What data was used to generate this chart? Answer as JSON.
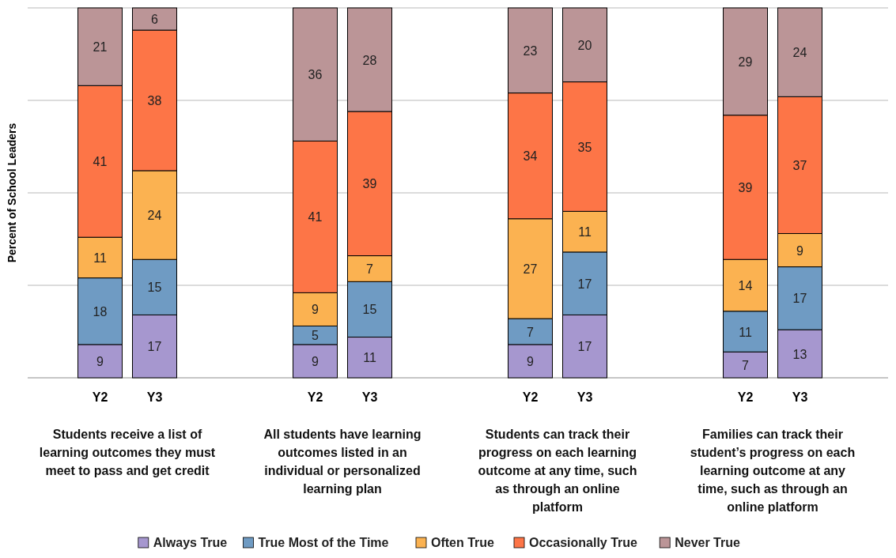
{
  "chart_data": {
    "type": "bar",
    "stacked": true,
    "ylabel": "Percent of School Leaders",
    "categories": [
      "Y2",
      "Y3",
      "Y2",
      "Y3",
      "Y2",
      "Y3",
      "Y2",
      "Y3"
    ],
    "series": [
      {
        "name": "Always True",
        "color": "#a697cf",
        "values": [
          9,
          17,
          9,
          11,
          9,
          17,
          7,
          13
        ]
      },
      {
        "name": "True Most of the Time",
        "color": "#6f9bc3",
        "values": [
          18,
          15,
          5,
          15,
          7,
          17,
          11,
          17
        ]
      },
      {
        "name": "Often True",
        "color": "#fbb251",
        "values": [
          11,
          24,
          9,
          7,
          27,
          11,
          14,
          9
        ]
      },
      {
        "name": "Occasionally True",
        "color": "#fd7547",
        "values": [
          41,
          38,
          41,
          39,
          34,
          35,
          39,
          37
        ]
      },
      {
        "name": "Never True",
        "color": "#bb9597",
        "values": [
          21,
          6,
          36,
          28,
          23,
          20,
          29,
          24
        ]
      }
    ],
    "ylim": [
      0,
      100
    ],
    "yticks": [
      {
        "value": 0,
        "label": null
      },
      {
        "value": 25,
        "label": null
      },
      {
        "value": 50,
        "label": null
      },
      {
        "value": 75,
        "label": null
      },
      {
        "value": 100,
        "label": null
      }
    ],
    "tick_labels": "x",
    "grid": "y",
    "data_labels": true,
    "legend": "bottom",
    "annotations": [
      "Students receive a list of learning outcomes they must meet to pass and get credit",
      "All students have learning outcomes listed in an individual or personalized learning plan",
      "Students can track their progress on each learning outcome at any time, such as through an online platform",
      "Families can track their student’s progress on each learning outcome at any time, such as through an online platform"
    ]
  }
}
